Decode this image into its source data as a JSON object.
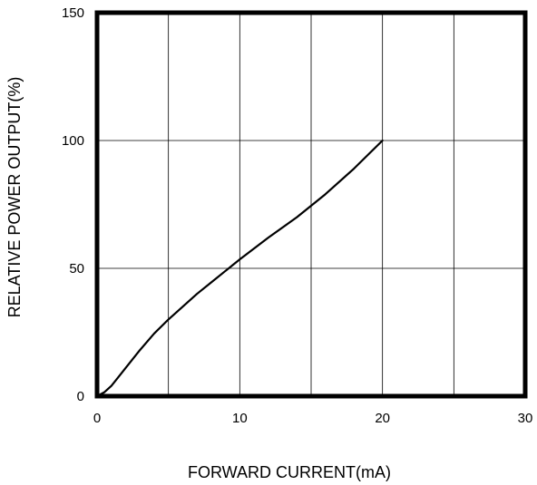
{
  "chart_data": {
    "type": "line",
    "title": "",
    "xlabel": "FORWARD CURRENT(mA)",
    "ylabel": "RELATIVE POWER OUTPUT(%)",
    "xlim": [
      0,
      30
    ],
    "ylim": [
      0,
      150
    ],
    "x_ticks": [
      0,
      10,
      20,
      30
    ],
    "y_ticks": [
      0,
      50,
      100,
      150
    ],
    "x_ticks_labels": [
      "0",
      "10",
      "20",
      "30"
    ],
    "y_ticks_labels": [
      "0",
      "50",
      "100",
      "150"
    ],
    "x_gridlines": [
      0,
      5,
      10,
      15,
      20,
      25,
      30
    ],
    "y_gridlines": [
      0,
      50,
      100,
      150
    ],
    "grid": true,
    "legend": "none",
    "series": [
      {
        "x": [
          0,
          0.5,
          1,
          2,
          3,
          4,
          5,
          6,
          7,
          8,
          9,
          10,
          12,
          14,
          16,
          18,
          20
        ],
        "y": [
          0,
          1.5,
          4,
          11,
          18,
          24.5,
          30,
          35,
          40,
          44.5,
          49,
          53.5,
          62,
          70,
          79,
          89,
          100
        ],
        "color": "#000000"
      }
    ]
  }
}
